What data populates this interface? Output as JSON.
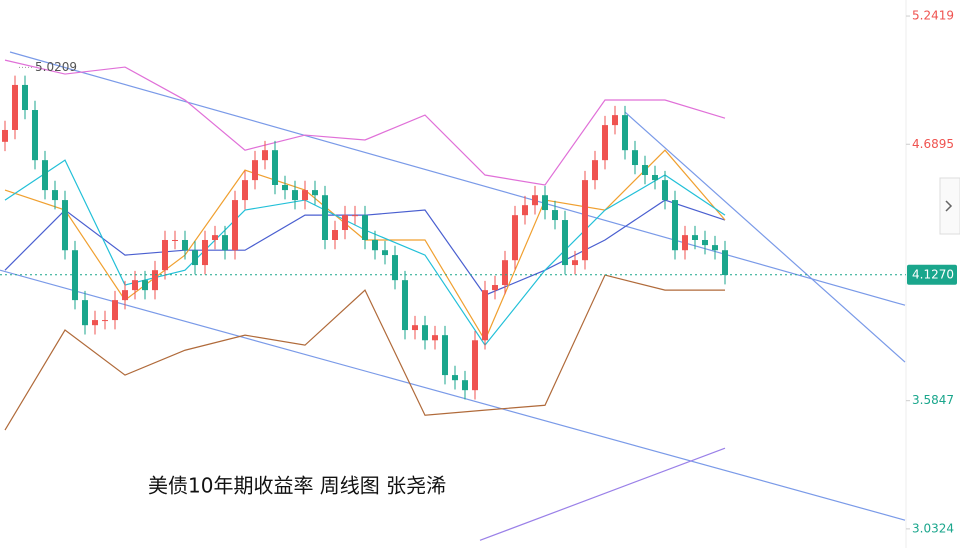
{
  "chart_data": {
    "type": "candlestick",
    "title": "美债10年期收益率 周线图 张尧浠",
    "annotation": {
      "text": "5.0209",
      "x": 1,
      "y": 5.0209
    },
    "ylim": [
      2.95,
      5.311
    ],
    "yticks": [
      5.2419,
      4.6895,
      {
        "value": 4.127,
        "label": "4.1270"
      },
      3.5847,
      3.0324
    ],
    "current_price_tick": 2,
    "up_color": "#ef5350",
    "down_color": "#1aa68c",
    "open": [
      4.7,
      4.751,
      4.945,
      4.837,
      4.621,
      4.492,
      4.449,
      4.233,
      4.018,
      3.91,
      3.932,
      3.932,
      4.018,
      4.061,
      4.104,
      4.061,
      4.147,
      4.277,
      4.277,
      4.233,
      4.169,
      4.277,
      4.298,
      4.233,
      4.449,
      4.535,
      4.621,
      4.664,
      4.514,
      4.492,
      4.449,
      4.492,
      4.47,
      4.277,
      4.32,
      4.384,
      4.384,
      4.277,
      4.233,
      4.212,
      4.104,
      3.889,
      3.91,
      3.845,
      3.867,
      3.695,
      3.673,
      3.63,
      3.845,
      4.061,
      4.083,
      4.19,
      4.384,
      4.427,
      4.47,
      4.406,
      4.363,
      4.169,
      4.19,
      4.535,
      4.621,
      4.772,
      4.815,
      4.664,
      4.6,
      4.557,
      4.535,
      4.449,
      4.233,
      4.298,
      4.277,
      4.255,
      4.233
    ],
    "high": [
      4.791,
      4.985,
      4.985,
      4.877,
      4.661,
      4.532,
      4.489,
      4.273,
      4.058,
      3.972,
      3.972,
      4.058,
      4.101,
      4.144,
      4.144,
      4.187,
      4.317,
      4.317,
      4.317,
      4.273,
      4.317,
      4.338,
      4.338,
      4.489,
      4.575,
      4.661,
      4.704,
      4.704,
      4.554,
      4.532,
      4.532,
      4.532,
      4.51,
      4.36,
      4.424,
      4.424,
      4.424,
      4.317,
      4.273,
      4.252,
      4.144,
      3.95,
      3.95,
      3.907,
      3.907,
      3.735,
      3.713,
      3.885,
      4.101,
      4.123,
      4.23,
      4.424,
      4.467,
      4.51,
      4.51,
      4.446,
      4.403,
      4.23,
      4.575,
      4.661,
      4.812,
      4.855,
      4.855,
      4.704,
      4.64,
      4.597,
      4.575,
      4.489,
      4.338,
      4.338,
      4.317,
      4.295,
      4.273
    ],
    "low": [
      4.66,
      4.711,
      4.797,
      4.581,
      4.452,
      4.409,
      4.193,
      3.978,
      3.87,
      3.87,
      3.892,
      3.892,
      3.978,
      4.021,
      4.021,
      4.021,
      4.107,
      4.237,
      4.193,
      4.129,
      4.129,
      4.237,
      4.193,
      4.193,
      4.409,
      4.495,
      4.581,
      4.474,
      4.452,
      4.409,
      4.409,
      4.43,
      4.237,
      4.237,
      4.28,
      4.344,
      4.237,
      4.193,
      4.172,
      4.064,
      3.849,
      3.849,
      3.805,
      3.805,
      3.655,
      3.633,
      3.59,
      3.59,
      3.805,
      4.021,
      4.043,
      4.15,
      4.344,
      4.387,
      4.366,
      4.323,
      4.129,
      4.129,
      4.15,
      4.495,
      4.581,
      4.732,
      4.624,
      4.56,
      4.517,
      4.495,
      4.409,
      4.193,
      4.193,
      4.237,
      4.215,
      4.193,
      4.086
    ],
    "close": [
      4.751,
      4.945,
      4.837,
      4.621,
      4.492,
      4.449,
      4.233,
      4.018,
      3.91,
      3.932,
      3.932,
      4.018,
      4.061,
      4.104,
      4.061,
      4.147,
      4.277,
      4.277,
      4.233,
      4.169,
      4.277,
      4.298,
      4.233,
      4.449,
      4.535,
      4.621,
      4.664,
      4.514,
      4.492,
      4.449,
      4.492,
      4.47,
      4.277,
      4.32,
      4.384,
      4.384,
      4.277,
      4.233,
      4.212,
      4.104,
      3.889,
      3.91,
      3.845,
      3.867,
      3.695,
      3.673,
      3.63,
      3.845,
      4.061,
      4.083,
      4.19,
      4.384,
      4.427,
      4.47,
      4.406,
      4.363,
      4.169,
      4.19,
      4.535,
      4.621,
      4.772,
      4.815,
      4.664,
      4.6,
      4.557,
      4.535,
      4.449,
      4.233,
      4.298,
      4.277,
      4.255,
      4.233,
      4.126
    ],
    "overlay_x": [
      0,
      6,
      12,
      18,
      24,
      30,
      36,
      42,
      48,
      54,
      60,
      66,
      72
    ],
    "overlays": [
      {
        "color": "#e070d8",
        "values": [
          5.052,
          4.992,
          5.022,
          4.88,
          4.664,
          4.729,
          4.708,
          4.815,
          4.557,
          4.514,
          4.88,
          4.88,
          4.802
        ]
      },
      {
        "color": "#4a5fd0",
        "values": [
          4.147,
          4.406,
          4.212,
          4.233,
          4.233,
          4.384,
          4.384,
          4.406,
          4.039,
          4.147,
          4.277,
          4.449,
          4.363
        ]
      },
      {
        "color": "#b06a3a",
        "values": [
          3.458,
          3.889,
          3.695,
          3.802,
          3.867,
          3.824,
          4.061,
          3.522,
          3.544,
          3.565,
          4.126,
          4.061,
          4.061
        ]
      },
      {
        "color": "#f0a030",
        "values": [
          4.492,
          4.406,
          4.018,
          4.212,
          4.578,
          4.492,
          4.277,
          4.277,
          3.845,
          4.449,
          4.406,
          4.664,
          4.363
        ]
      },
      {
        "color": "#22c0d8",
        "values": [
          4.449,
          4.621,
          4.083,
          4.147,
          4.406,
          4.449,
          4.32,
          4.212,
          3.824,
          4.147,
          4.406,
          4.557,
          4.384
        ]
      }
    ],
    "trendlines": [
      {
        "color": "#7a9ae8",
        "x": [
          0.5,
          90
        ],
        "y": [
          5.087,
          3.996
        ]
      },
      {
        "color": "#7a9ae8",
        "x": [
          -0.5,
          90
        ],
        "y": [
          4.147,
          3.07
        ]
      },
      {
        "color": "#7a9ae8",
        "x": [
          62,
          90
        ],
        "y": [
          4.828,
          3.751
        ]
      },
      {
        "color": "#9a80e8",
        "x": [
          47.5,
          72
        ],
        "y": [
          2.983,
          3.38
        ]
      }
    ]
  }
}
